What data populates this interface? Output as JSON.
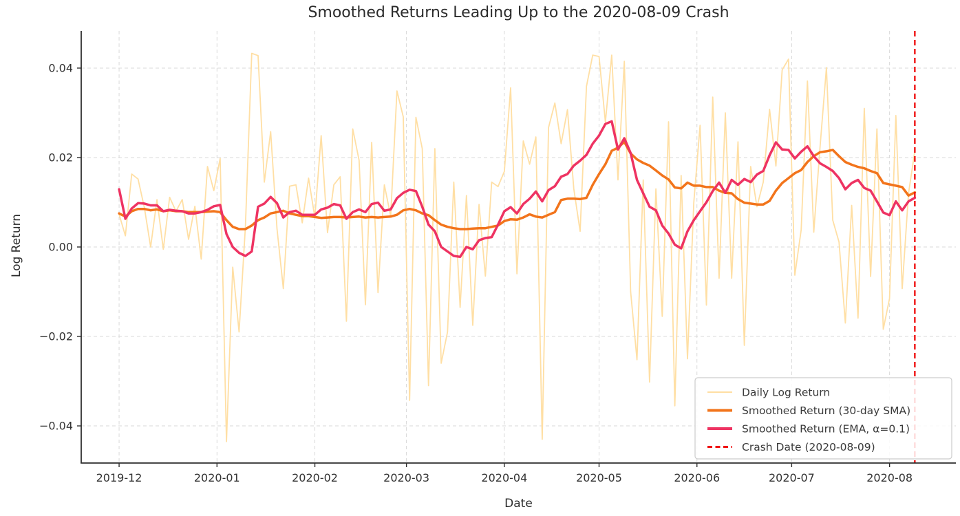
{
  "title": "Smoothed Returns Leading Up to the 2020-08-09 Crash",
  "axes": {
    "xlabel": "Date",
    "ylabel": "Log Return",
    "x_ticks": [
      {
        "label": "2019-12",
        "date": "2019-12-01"
      },
      {
        "label": "2020-01",
        "date": "2020-01-01"
      },
      {
        "label": "2020-02",
        "date": "2020-02-01"
      },
      {
        "label": "2020-03",
        "date": "2020-03-01"
      },
      {
        "label": "2020-04",
        "date": "2020-04-01"
      },
      {
        "label": "2020-05",
        "date": "2020-05-01"
      },
      {
        "label": "2020-06",
        "date": "2020-06-01"
      },
      {
        "label": "2020-07",
        "date": "2020-07-01"
      },
      {
        "label": "2020-08",
        "date": "2020-08-01"
      }
    ],
    "y_ticks": [
      {
        "label": "0.04",
        "value": 0.04
      },
      {
        "label": "0.02",
        "value": 0.02
      },
      {
        "label": "0.00",
        "value": 0.0
      },
      {
        "label": "−0.02",
        "value": -0.02
      },
      {
        "label": "−0.04",
        "value": -0.04
      }
    ],
    "ylim": [
      -0.0483,
      0.0483
    ],
    "xlim_dates": [
      "2019-11-19",
      "2020-08-22"
    ],
    "grid": true,
    "grid_style": "dashed"
  },
  "legend": {
    "position": "lower right",
    "items": [
      {
        "label": "Daily Log Return",
        "color": "#FFDFA4",
        "width": 1.8,
        "dash": ""
      },
      {
        "label": "Smoothed Return (30-day SMA)",
        "color": "#F2741B",
        "width": 3.5,
        "dash": ""
      },
      {
        "label": "Smoothed Return (EMA, α=0.1)",
        "color": "#EE3362",
        "width": 3.5,
        "dash": ""
      },
      {
        "label": "Crash Date (2020-08-09)",
        "color": "#EF1111",
        "width": 2.4,
        "dash": "7 4.5"
      }
    ]
  },
  "colors": {
    "background": "#ffffff",
    "grid": "#d8d8d8",
    "spine": "#2e2e2e",
    "text": "#2b2b2b",
    "tick_text": "#333333",
    "daily": "#FFDFA4",
    "sma": "#F2741B",
    "ema": "#EE3362",
    "crash": "#EF1111"
  },
  "chart_data": {
    "type": "line",
    "x": {
      "start": "2019-12-01",
      "step_days": 2,
      "end": "2020-08-09",
      "n_points": 127
    },
    "title": "Smoothed Returns Leading Up to the 2020-08-09 Crash",
    "xlabel": "Date",
    "ylabel": "Log Return",
    "ylim": [
      -0.0483,
      0.0483
    ],
    "legend_position": "lower right",
    "vline": {
      "date": "2020-08-09",
      "label": "Crash Date (2020-08-09)",
      "color": "#EF1111",
      "style": "dashed"
    },
    "series": [
      {
        "name": "Daily Log Return",
        "color": "#FFDFA4",
        "line_width": 1.8,
        "dash": "",
        "values": [
          0.0073,
          0.0025,
          0.0163,
          0.0152,
          0.0088,
          0.0,
          0.0106,
          -0.0005,
          0.0111,
          0.008,
          0.0106,
          0.0017,
          0.0091,
          -0.0027,
          0.018,
          0.0126,
          0.0198,
          -0.0435,
          -0.0045,
          -0.019,
          0.0045,
          0.0433,
          0.0428,
          0.0145,
          0.0258,
          0.0041,
          -0.0093,
          0.0136,
          0.0139,
          0.0054,
          0.0154,
          0.0066,
          0.0249,
          0.0032,
          0.0139,
          0.0157,
          -0.0166,
          0.0264,
          0.0194,
          -0.0129,
          0.0234,
          -0.0102,
          0.0139,
          0.0069,
          0.0349,
          0.0291,
          -0.0343,
          0.029,
          0.022,
          -0.031,
          0.022,
          -0.026,
          -0.019,
          0.0145,
          -0.0135,
          0.0115,
          -0.0175,
          0.0095,
          -0.0065,
          0.0145,
          0.0135,
          0.0169,
          0.0356,
          -0.006,
          0.0237,
          0.0185,
          0.0246,
          -0.043,
          0.0267,
          0.0322,
          0.0231,
          0.0307,
          0.013,
          0.0035,
          0.0359,
          0.0429,
          0.0426,
          0.0279,
          0.0429,
          0.015,
          0.0415,
          -0.01,
          -0.0252,
          0.015,
          -0.0302,
          0.013,
          -0.0155,
          0.028,
          -0.0355,
          0.016,
          -0.025,
          0.01,
          0.0272,
          -0.013,
          0.0335,
          -0.007,
          0.03,
          -0.007,
          0.0235,
          -0.022,
          0.018,
          0.009,
          0.0145,
          0.0308,
          0.0181,
          0.0396,
          0.042,
          -0.0063,
          0.0038,
          0.0371,
          0.0033,
          0.0225,
          0.0401,
          0.006,
          0.0011,
          -0.017,
          0.0093,
          -0.0159,
          0.031,
          -0.0066,
          0.0264,
          -0.0184,
          -0.0115,
          0.0294,
          -0.0093,
          0.012,
          0.0215
        ]
      },
      {
        "name": "Smoothed Return (30-day SMA)",
        "color": "#F2741B",
        "line_width": 3.5,
        "dash": "",
        "values": [
          0.0075,
          0.0068,
          0.008,
          0.0085,
          0.0085,
          0.0082,
          0.0084,
          0.008,
          0.0082,
          0.008,
          0.008,
          0.0078,
          0.0078,
          0.0078,
          0.0079,
          0.008,
          0.0078,
          0.006,
          0.0045,
          0.004,
          0.004,
          0.0048,
          0.006,
          0.0066,
          0.0075,
          0.0078,
          0.0081,
          0.0075,
          0.0072,
          0.0069,
          0.0069,
          0.0067,
          0.0065,
          0.0066,
          0.0067,
          0.0067,
          0.0066,
          0.0067,
          0.0068,
          0.0066,
          0.0067,
          0.0066,
          0.0067,
          0.0068,
          0.0072,
          0.0082,
          0.0085,
          0.0082,
          0.0075,
          0.0071,
          0.006,
          0.005,
          0.0045,
          0.0042,
          0.004,
          0.004,
          0.0041,
          0.0042,
          0.0042,
          0.0045,
          0.0048,
          0.0058,
          0.0062,
          0.0061,
          0.0066,
          0.0073,
          0.0068,
          0.0066,
          0.0072,
          0.0078,
          0.0105,
          0.0108,
          0.0108,
          0.0107,
          0.011,
          0.0139,
          0.0163,
          0.0185,
          0.0215,
          0.0222,
          0.0235,
          0.0209,
          0.0196,
          0.0188,
          0.0182,
          0.0171,
          0.016,
          0.0151,
          0.0133,
          0.0131,
          0.0144,
          0.0137,
          0.0137,
          0.0134,
          0.0134,
          0.0126,
          0.0121,
          0.012,
          0.0107,
          0.0099,
          0.0097,
          0.0095,
          0.0095,
          0.0103,
          0.0126,
          0.0143,
          0.0154,
          0.0165,
          0.0172,
          0.019,
          0.0203,
          0.0212,
          0.0214,
          0.0217,
          0.0203,
          0.019,
          0.0184,
          0.0179,
          0.0176,
          0.017,
          0.0165,
          0.0143,
          0.014,
          0.0137,
          0.0134,
          0.0115,
          0.0122
        ]
      },
      {
        "name": "Smoothed Return (EMA, α=0.1)",
        "color": "#EE3362",
        "line_width": 3.5,
        "dash": "",
        "values": [
          0.0129,
          0.0063,
          0.0086,
          0.0098,
          0.0097,
          0.0093,
          0.0093,
          0.008,
          0.0083,
          0.0081,
          0.008,
          0.0075,
          0.0075,
          0.0078,
          0.0083,
          0.0091,
          0.0094,
          0.0029,
          0.0,
          -0.0013,
          -0.002,
          -0.001,
          0.009,
          0.0097,
          0.0112,
          0.0098,
          0.0066,
          0.0078,
          0.0081,
          0.0072,
          0.0072,
          0.0072,
          0.0084,
          0.0088,
          0.0096,
          0.0093,
          0.0063,
          0.0078,
          0.0084,
          0.0078,
          0.0096,
          0.0099,
          0.0081,
          0.0084,
          0.0109,
          0.0121,
          0.0128,
          0.0125,
          0.009,
          0.005,
          0.0035,
          0.0,
          -0.001,
          -0.002,
          -0.0022,
          0.0,
          -0.0005,
          0.0015,
          0.002,
          0.0022,
          0.005,
          0.008,
          0.0089,
          0.0075,
          0.0096,
          0.0108,
          0.0124,
          0.0102,
          0.0127,
          0.0136,
          0.0157,
          0.0163,
          0.0182,
          0.0193,
          0.0206,
          0.0231,
          0.0249,
          0.0275,
          0.0281,
          0.0218,
          0.0243,
          0.021,
          0.015,
          0.012,
          0.009,
          0.0082,
          0.0048,
          0.003,
          0.0005,
          -0.0003,
          0.0035,
          0.006,
          0.008,
          0.01,
          0.0125,
          0.0144,
          0.0121,
          0.015,
          0.0139,
          0.0152,
          0.0145,
          0.0162,
          0.017,
          0.0205,
          0.0234,
          0.0218,
          0.0217,
          0.0198,
          0.0213,
          0.0225,
          0.0203,
          0.0187,
          0.0179,
          0.017,
          0.0154,
          0.0129,
          0.0143,
          0.015,
          0.0132,
          0.0126,
          0.0102,
          0.0077,
          0.0071,
          0.0102,
          0.0082,
          0.0102,
          0.011
        ]
      }
    ]
  }
}
